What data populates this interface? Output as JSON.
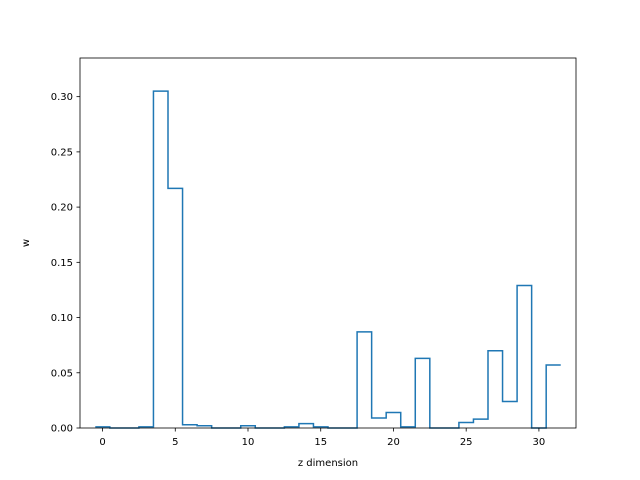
{
  "chart_data": {
    "type": "line",
    "style": "step",
    "title": "",
    "xlabel": "z dimension",
    "ylabel": "w",
    "xlim": [
      -1.55,
      32.55
    ],
    "ylim": [
      0,
      0.335
    ],
    "xticks": [
      0,
      5,
      10,
      15,
      20,
      25,
      30
    ],
    "yticks": [
      0.0,
      0.05,
      0.1,
      0.15,
      0.2,
      0.25,
      0.3
    ],
    "ytick_labels": [
      "0.00",
      "0.05",
      "0.10",
      "0.15",
      "0.20",
      "0.25",
      "0.30"
    ],
    "grid": false,
    "line_color": "#1f77b4",
    "series": [
      {
        "x": [
          0,
          1,
          2,
          3,
          4,
          5,
          6,
          7,
          8,
          9,
          10,
          11,
          12,
          13,
          14,
          15,
          16,
          17,
          18,
          19,
          20,
          21,
          22,
          23,
          24,
          25,
          26,
          27,
          28,
          29,
          30,
          31
        ],
        "values": [
          0.001,
          0.0,
          0.0,
          0.001,
          0.305,
          0.217,
          0.003,
          0.002,
          0.0,
          0.0,
          0.002,
          0.0,
          0.0,
          0.001,
          0.004,
          0.001,
          0.0,
          0.0,
          0.087,
          0.009,
          0.014,
          0.001,
          0.063,
          0.0,
          0.0,
          0.005,
          0.008,
          0.07,
          0.024,
          0.129,
          0.0,
          0.057
        ]
      }
    ]
  }
}
